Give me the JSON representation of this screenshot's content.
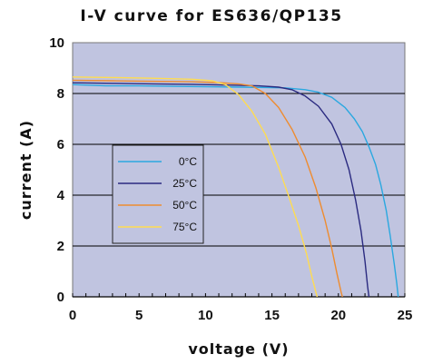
{
  "chart_data": {
    "type": "line",
    "title": "I-V curve for ES636/QP135",
    "xlabel": "voltage (V)",
    "ylabel": "current (A)",
    "xlim": [
      0,
      25
    ],
    "ylim": [
      0,
      10
    ],
    "xticks": [
      0,
      5,
      10,
      15,
      20,
      25
    ],
    "yticks": [
      0,
      2,
      4,
      6,
      8,
      10
    ],
    "grid": "horizontal",
    "legend_position": "left-center",
    "plot_background": "#c0c4e0",
    "series": [
      {
        "name": "0°C",
        "color": "#2aa8e0",
        "x": [
          0,
          2.5,
          5,
          8,
          11,
          14,
          16,
          17.5,
          18.5,
          19.5,
          20.5,
          21.2,
          21.8,
          22.3,
          22.8,
          23.2,
          23.6,
          23.9,
          24.2,
          24.4,
          24.5
        ],
        "y": [
          8.35,
          8.3,
          8.3,
          8.28,
          8.26,
          8.24,
          8.22,
          8.15,
          8.05,
          7.85,
          7.45,
          7.0,
          6.5,
          5.9,
          5.2,
          4.4,
          3.4,
          2.4,
          1.3,
          0.5,
          0
        ]
      },
      {
        "name": "25°C",
        "color": "#2a2a80",
        "x": [
          0,
          3,
          6,
          9,
          12,
          14,
          15.5,
          16.5,
          17.5,
          18.5,
          19.5,
          20.2,
          20.8,
          21.3,
          21.7,
          22.0,
          22.2,
          22.3
        ],
        "y": [
          8.42,
          8.4,
          8.38,
          8.36,
          8.33,
          8.3,
          8.25,
          8.15,
          7.9,
          7.5,
          6.8,
          6.0,
          5.0,
          3.8,
          2.6,
          1.4,
          0.4,
          0
        ]
      },
      {
        "name": "50°C",
        "color": "#ee8c30",
        "x": [
          0,
          3,
          6,
          9,
          11,
          12.5,
          13.5,
          14.5,
          15.5,
          16.5,
          17.5,
          18.3,
          19.0,
          19.5,
          19.9,
          20.2,
          20.3
        ],
        "y": [
          8.52,
          8.5,
          8.48,
          8.46,
          8.43,
          8.38,
          8.3,
          8.0,
          7.45,
          6.6,
          5.5,
          4.3,
          3.0,
          1.9,
          0.9,
          0.2,
          0
        ]
      },
      {
        "name": "75°C",
        "color": "#ffdc50",
        "x": [
          0,
          3,
          6,
          9,
          10.5,
          11.5,
          12.5,
          13.5,
          14.5,
          15.5,
          16.3,
          17.0,
          17.6,
          18.0,
          18.3,
          18.4
        ],
        "y": [
          8.65,
          8.63,
          8.6,
          8.56,
          8.5,
          8.35,
          7.95,
          7.3,
          6.4,
          5.1,
          3.9,
          2.8,
          1.7,
          0.8,
          0.2,
          0
        ]
      }
    ]
  }
}
